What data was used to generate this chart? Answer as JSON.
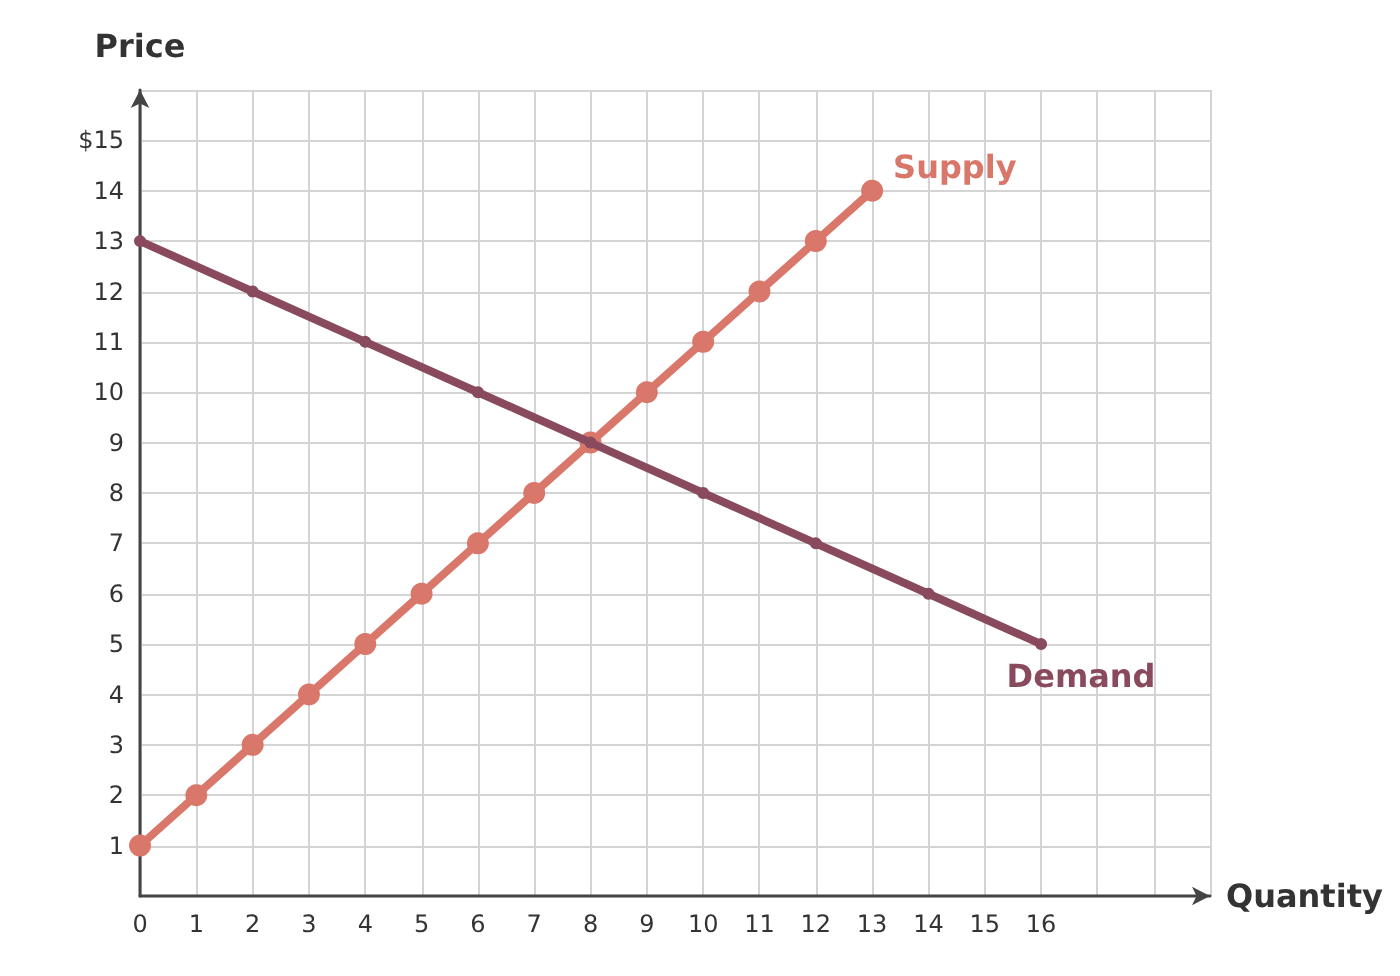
{
  "chart_data": {
    "type": "line",
    "xlabel": "Quantity",
    "ylabel": "Price",
    "xlim": [
      0,
      19
    ],
    "xticks": [
      0,
      1,
      2,
      3,
      4,
      5,
      6,
      7,
      8,
      9,
      10,
      11,
      12,
      13,
      14,
      15,
      16,
      {
        "value": 17,
        "label": null
      },
      {
        "value": 18,
        "label": null
      },
      {
        "value": 19,
        "label": null
      }
    ],
    "ylim": [
      0,
      16
    ],
    "yticks": [
      1,
      2,
      3,
      4,
      5,
      6,
      7,
      8,
      9,
      10,
      11,
      12,
      13,
      14,
      {
        "value": 15,
        "label": "$15"
      },
      {
        "value": 16,
        "label": null
      }
    ],
    "series": [
      {
        "name": "Supply",
        "color": "#d9776b",
        "x": [
          0,
          1,
          2,
          3,
          4,
          5,
          6,
          7,
          8,
          9,
          10,
          11,
          12,
          13
        ],
        "values": [
          1,
          2,
          3,
          4,
          5,
          6,
          7,
          8,
          9,
          10,
          11,
          12,
          13,
          14
        ]
      },
      {
        "name": "Demand",
        "color": "#8a4a5e",
        "x": [
          0,
          2,
          4,
          6,
          8,
          10,
          12,
          14,
          16
        ],
        "values": [
          13,
          12,
          11,
          10,
          9,
          8,
          7,
          6,
          5
        ]
      }
    ],
    "marker": "circle",
    "grid": true,
    "legend": false
  }
}
